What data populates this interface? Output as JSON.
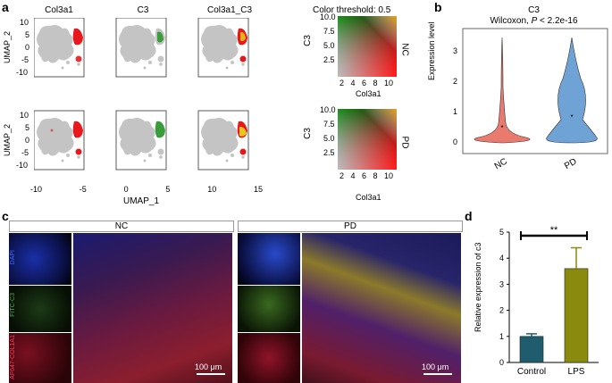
{
  "panels": {
    "a": "a",
    "b": "b",
    "c": "c",
    "d": "d"
  },
  "panel_a": {
    "columns": [
      "Col3a1",
      "C3",
      "Col3a1_C3"
    ],
    "ylabel": "UMAP_2",
    "xlabel": "UMAP_1",
    "yticks": [
      "10",
      "5",
      "0",
      "-5",
      "-10"
    ],
    "xticks": [
      "-10",
      "-5",
      "0",
      "5",
      "10",
      "15"
    ],
    "threshold": "Color threshold: 0.5",
    "grid_ylabel": "C3",
    "grid_xlabel": "Col3a1",
    "grid_yticks": [
      "10.0",
      "7.5",
      "5.0",
      "2.5"
    ],
    "grid_xticks": [
      "2",
      "4",
      "6",
      "8",
      "10"
    ],
    "rows": [
      "NC",
      "PD"
    ]
  },
  "panel_b": {
    "title": "C3",
    "subtitle_prefix": "Wilcoxon, ",
    "subtitle_p": "P",
    "subtitle_suffix": " < 2.2e-16",
    "ylabel": "Expression level",
    "yticks": [
      "0",
      "1",
      "2",
      "3"
    ],
    "groups": [
      "NC",
      "PD"
    ],
    "colors": [
      "#e87a6e",
      "#6fa3d6"
    ]
  },
  "panel_c": {
    "groups": [
      "NC",
      "PD"
    ],
    "channels": [
      "DAPI",
      "FITC-C3",
      "AF647-COL1A1"
    ],
    "channel_colors": [
      "#3b6dff",
      "#4caf50",
      "#ff3b5c"
    ],
    "scalebar": "100 μm"
  },
  "chart_data": {
    "type": "bar",
    "categories": [
      "Control",
      "LPS"
    ],
    "values": [
      1.0,
      3.6
    ],
    "errors": [
      0.1,
      0.8
    ],
    "colors": [
      "#1f5d6e",
      "#8a8a0e"
    ],
    "ylabel": "Relative expression of c3",
    "ylim": [
      0,
      5
    ],
    "yticks": [
      "0",
      "1",
      "2",
      "3",
      "4",
      "5"
    ],
    "significance": "**"
  }
}
